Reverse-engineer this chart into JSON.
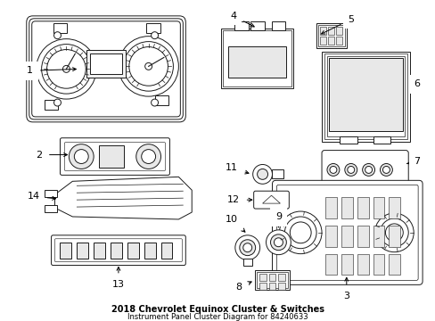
{
  "title": "2018 Chevrolet Equinox Cluster & Switches",
  "subtitle": "Instrument Panel Cluster Diagram for 84240633",
  "background_color": "#ffffff",
  "line_color": "#1a1a1a",
  "label_color": "#000000",
  "font_size_label": 8,
  "font_size_title": 7,
  "figsize": [
    4.89,
    3.6
  ],
  "dpi": 100
}
